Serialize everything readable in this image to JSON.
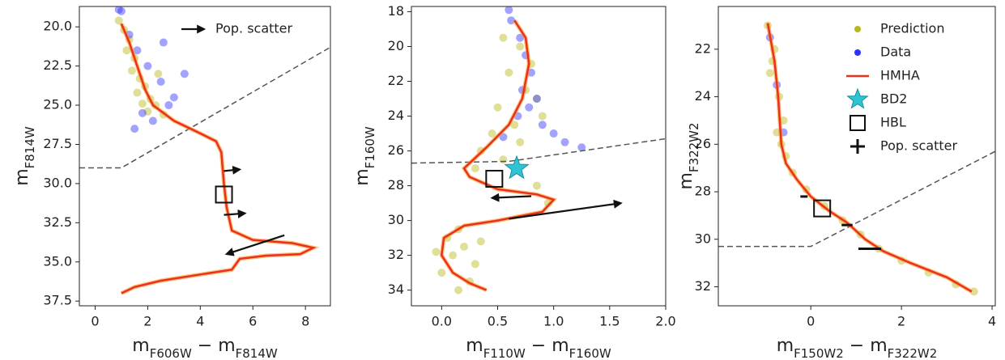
{
  "chart_data": [
    {
      "type": "scatter",
      "xlim": [
        -0.6,
        8.95
      ],
      "ylim": [
        37.8,
        18.7
      ],
      "xticks": [
        0,
        2,
        4,
        6,
        8
      ],
      "yticks": [
        {
          "value": 20,
          "label": "20.0"
        },
        22.5,
        {
          "value": 25,
          "label": "25.0"
        },
        27.5,
        {
          "value": 30,
          "label": "30.0"
        },
        32.5,
        {
          "value": 35,
          "label": "35.0"
        },
        37.5
      ],
      "xlabel": [
        {
          "text": "m"
        },
        {
          "text": "F606W",
          "sub": true
        },
        {
          "text": " − m"
        },
        {
          "text": "F814W",
          "sub": true
        }
      ],
      "ylabel": [
        {
          "text": "m"
        },
        {
          "text": "F814W",
          "sub": true
        }
      ],
      "legend": "upper right",
      "series": [
        {
          "kind": "scatter",
          "color": "#b8b81a",
          "x": [
            0.9,
            1.1,
            1.3,
            1.2,
            1.5,
            1.4,
            1.7,
            1.9,
            1.6,
            2.1,
            2.3,
            2.0,
            2.6,
            1.8,
            2.4
          ],
          "y": [
            19.6,
            20.2,
            20.8,
            21.5,
            22.0,
            22.8,
            23.3,
            23.8,
            24.2,
            24.6,
            25.0,
            25.4,
            25.6,
            24.9,
            23.0
          ]
        },
        {
          "kind": "scatter",
          "color": "#3030ff",
          "x": [
            0.9,
            1.0,
            1.3,
            1.6,
            2.0,
            2.5,
            3.0,
            1.8,
            2.2,
            2.8,
            3.4,
            1.5,
            2.6
          ],
          "y": [
            18.9,
            19.0,
            20.5,
            21.5,
            22.5,
            23.5,
            24.5,
            25.5,
            26.0,
            25.0,
            23.0,
            26.5,
            21.0
          ]
        },
        {
          "kind": "line",
          "color": "#e8321e",
          "x": [
            1.0,
            1.3,
            1.6,
            1.9,
            2.2,
            3.0,
            4.0,
            4.6,
            4.8,
            4.9,
            5.0,
            5.2,
            6.0,
            7.5,
            8.3,
            7.8,
            6.5,
            5.5,
            5.2,
            4.0,
            2.5,
            1.5,
            1.0
          ],
          "y": [
            19.8,
            21.0,
            22.5,
            24.0,
            25.0,
            26.0,
            26.8,
            27.3,
            28.0,
            30.0,
            31.5,
            33.0,
            33.6,
            33.8,
            34.1,
            34.5,
            34.6,
            34.8,
            35.5,
            35.8,
            36.2,
            36.6,
            37.0
          ]
        },
        {
          "kind": "dashed",
          "color": "#555555",
          "x": [
            -0.6,
            1.0,
            8.95
          ],
          "y": [
            29.0,
            29.0,
            21.3
          ]
        },
        {
          "kind": "square",
          "color": "#111111",
          "x": [
            4.9
          ],
          "y": [
            30.7
          ]
        },
        {
          "kind": "arrow",
          "name": "Pop. scatter",
          "color": "#111111",
          "x0": [
            4.9,
            4.9,
            7.2
          ],
          "y0": [
            29.2,
            32.0,
            33.3
          ],
          "x1": [
            5.5,
            5.7,
            5.0
          ],
          "y1": [
            29.1,
            31.9,
            34.5
          ]
        }
      ]
    },
    {
      "type": "scatter",
      "xlim": [
        -0.27,
        2.0
      ],
      "ylim": [
        34.9,
        17.7
      ],
      "xticks": [
        {
          "value": 0,
          "label": "0.0"
        },
        0.5,
        {
          "value": 1,
          "label": "1.0"
        },
        1.5,
        {
          "value": 2,
          "label": "2.0"
        }
      ],
      "yticks": [
        18,
        20,
        22,
        24,
        26,
        28,
        30,
        32,
        34
      ],
      "xlabel": [
        {
          "text": "m"
        },
        {
          "text": "F110W",
          "sub": true
        },
        {
          "text": " − m"
        },
        {
          "text": "F160W",
          "sub": true
        }
      ],
      "ylabel": [
        {
          "text": "m"
        },
        {
          "text": "F160W",
          "sub": true
        }
      ],
      "series": [
        {
          "kind": "scatter",
          "color": "#b8b81a",
          "x": [
            0.55,
            0.7,
            0.8,
            0.6,
            0.75,
            0.85,
            0.5,
            0.65,
            0.9,
            0.45,
            0.7,
            0.35,
            0.55,
            0.3,
            0.15,
            0.05,
            0.2,
            0.1,
            0.3,
            0.0,
            -0.05,
            0.25,
            0.35,
            0.15,
            0.85,
            0.95
          ],
          "y": [
            19.5,
            20.0,
            21.0,
            21.5,
            22.5,
            23.0,
            23.5,
            24.5,
            24.0,
            25.0,
            25.5,
            26.0,
            26.5,
            27.0,
            30.5,
            31.0,
            31.5,
            32.0,
            32.5,
            33.0,
            31.8,
            33.5,
            31.2,
            34.0,
            28.0,
            29.0
          ]
        },
        {
          "kind": "scatter",
          "color": "#3030ff",
          "x": [
            0.6,
            0.62,
            0.7,
            0.75,
            0.8,
            0.72,
            0.78,
            0.85,
            0.68,
            0.9,
            1.0,
            1.1,
            1.25,
            0.55
          ],
          "y": [
            17.9,
            18.5,
            19.5,
            20.5,
            21.5,
            22.5,
            23.5,
            23.0,
            24.0,
            24.5,
            25.0,
            25.5,
            25.8,
            25.2
          ]
        },
        {
          "kind": "line",
          "color": "#e8321e",
          "x": [
            0.65,
            0.75,
            0.78,
            0.72,
            0.6,
            0.4,
            0.2,
            0.25,
            0.5,
            0.85,
            1.0,
            0.9,
            0.5,
            0.2,
            0.02,
            0.0,
            0.1,
            0.25,
            0.4
          ],
          "y": [
            18.5,
            19.5,
            21.0,
            23.0,
            24.5,
            25.8,
            27.0,
            27.5,
            28.2,
            28.5,
            28.8,
            29.5,
            30.0,
            30.3,
            31.0,
            32.0,
            33.0,
            33.6,
            34.0
          ]
        },
        {
          "kind": "dashed",
          "color": "#555555",
          "x": [
            -0.27,
            0.6,
            2.0
          ],
          "y": [
            26.7,
            26.6,
            25.3
          ]
        },
        {
          "kind": "star",
          "color": "#2ec4d6",
          "x": [
            0.67
          ],
          "y": [
            27.0
          ]
        },
        {
          "kind": "square",
          "color": "#111111",
          "x": [
            0.47
          ],
          "y": [
            27.6
          ]
        },
        {
          "kind": "arrow",
          "color": "#111111",
          "x0": [
            0.8,
            0.6
          ],
          "y0": [
            28.6,
            29.9
          ],
          "x1": [
            0.45,
            1.6
          ],
          "y1": [
            28.7,
            29.0
          ]
        }
      ]
    },
    {
      "type": "scatter",
      "xlim": [
        -2.04,
        4.07
      ],
      "ylim": [
        32.8,
        20.2
      ],
      "xticks": [
        0,
        2,
        4
      ],
      "yticks": [
        22,
        24,
        26,
        28,
        30,
        32
      ],
      "xlabel": [
        {
          "text": "m"
        },
        {
          "text": "F150W2",
          "sub": true
        },
        {
          "text": " − m"
        },
        {
          "text": "F322W2",
          "sub": true
        }
      ],
      "ylabel": [
        {
          "text": "m"
        },
        {
          "text": "F322W2",
          "sub": true
        }
      ],
      "legend": "upper right",
      "series": [
        {
          "kind": "scatter",
          "name": "Prediction",
          "color": "#b8b81a",
          "x": [
            -0.95,
            -0.8,
            -0.9,
            -0.7,
            -0.6,
            -0.75,
            -0.55,
            -0.4,
            -0.1,
            0.3,
            0.7,
            1.1,
            1.5,
            2.0,
            2.6,
            3.2,
            3.6,
            -0.85,
            -0.65
          ],
          "y": [
            21.0,
            22.0,
            23.0,
            24.0,
            25.0,
            25.5,
            26.5,
            27.2,
            27.9,
            28.6,
            29.2,
            29.8,
            30.4,
            30.9,
            31.4,
            31.9,
            32.2,
            22.5,
            26.0
          ]
        },
        {
          "kind": "scatter",
          "name": "Data",
          "color": "#3030ff",
          "x": [
            -0.9,
            -0.75,
            -0.6
          ],
          "y": [
            21.5,
            23.5,
            25.5
          ]
        },
        {
          "kind": "line",
          "name": "HMHA",
          "color": "#e8321e",
          "x": [
            -0.95,
            -0.8,
            -0.72,
            -0.65,
            -0.55,
            -0.3,
            0.0,
            0.4,
            0.8,
            1.2,
            1.6,
            2.2,
            3.0,
            3.55
          ],
          "y": [
            20.9,
            22.5,
            24.0,
            26.0,
            26.8,
            27.5,
            28.2,
            28.8,
            29.3,
            30.0,
            30.5,
            31.0,
            31.6,
            32.2
          ]
        },
        {
          "kind": "star",
          "name": "BD2",
          "color": "#2ec4d6",
          "x": [],
          "y": []
        },
        {
          "kind": "square",
          "name": "HBL",
          "color": "#111111",
          "x": [
            0.25
          ],
          "y": [
            28.7
          ]
        },
        {
          "kind": "errorbar",
          "name": "Pop. scatter",
          "color": "#111111",
          "x": [
            -0.15,
            0.8,
            1.3
          ],
          "y": [
            28.2,
            29.4,
            30.4
          ],
          "xerr": [
            0.08,
            0.12,
            0.25
          ]
        },
        {
          "kind": "dashed",
          "color": "#555555",
          "x": [
            -2.04,
            0.0,
            4.07
          ],
          "y": [
            30.3,
            30.3,
            26.3
          ]
        }
      ]
    }
  ]
}
